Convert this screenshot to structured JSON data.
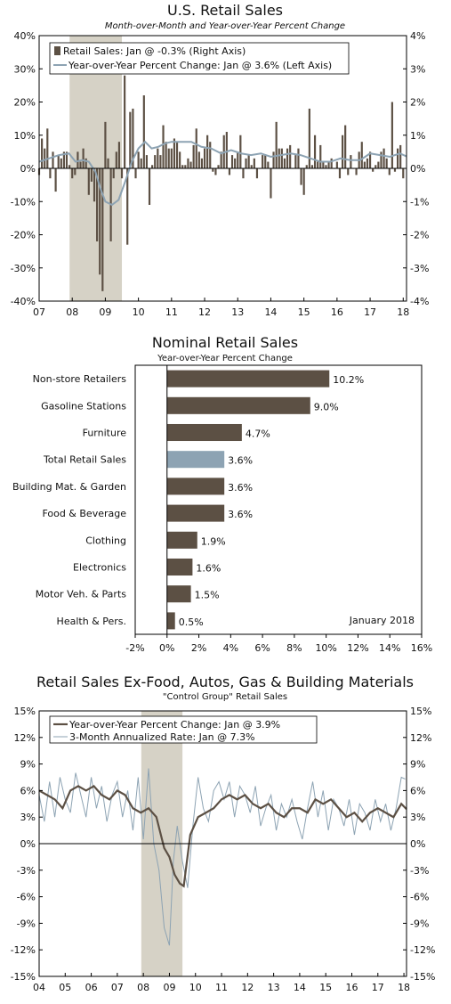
{
  "chart_data": [
    {
      "type": "bar",
      "title": "U.S. Retail Sales",
      "subtitle": "Month-over-Month and Year-over-Year Percent Change",
      "x_ticks": [
        "07",
        "08",
        "09",
        "10",
        "11",
        "12",
        "13",
        "14",
        "15",
        "16",
        "17",
        "18"
      ],
      "x_range": [
        2007.0,
        2018.1
      ],
      "left_axis": {
        "ticks": [
          "40%",
          "30%",
          "20%",
          "10%",
          "0%",
          "-10%",
          "-20%",
          "-30%",
          "-40%"
        ],
        "ylim": [
          -40,
          40
        ]
      },
      "right_axis": {
        "ticks": [
          "4%",
          "3%",
          "2%",
          "1%",
          "0%",
          "-1%",
          "-2%",
          "-3%",
          "-4%"
        ],
        "ylim": [
          -4,
          4
        ]
      },
      "recession_band": [
        2007.92,
        2009.5
      ],
      "legend": [
        {
          "label": "Retail Sales: Jan @ -0.3% (Right Axis)",
          "color": "#5c5044",
          "kind": "bar"
        },
        {
          "label": "Year-over-Year Percent Change: Jan @ 3.6% (Left Axis)",
          "color": "#8da3b3",
          "kind": "line"
        }
      ],
      "series": [
        {
          "name": "Retail Sales: Jan @ -0.3% (Right Axis)",
          "axis": "right",
          "color": "#5c5044",
          "start": 2007.0,
          "step": 0.0833333,
          "values": [
            -0.2,
            0.9,
            0.6,
            1.2,
            -0.3,
            0.5,
            -0.7,
            0.4,
            0.3,
            0.5,
            0.5,
            0.1,
            -0.3,
            -0.2,
            0.5,
            0.2,
            0.6,
            0.3,
            -0.8,
            -0.4,
            -1.0,
            -2.2,
            -3.2,
            -3.7,
            1.4,
            0.3,
            -2.2,
            -0.3,
            0.5,
            0.8,
            -0.3,
            2.8,
            -2.3,
            1.7,
            1.8,
            -0.3,
            0.5,
            0.3,
            2.2,
            0.4,
            -1.1,
            0.1,
            0.4,
            0.6,
            0.4,
            1.3,
            0.8,
            0.6,
            0.6,
            0.9,
            0.8,
            0.5,
            0.1,
            0.1,
            0.3,
            0.2,
            0.7,
            1.2,
            0.5,
            0.3,
            0.6,
            1.0,
            0.8,
            -0.1,
            -0.2,
            0.1,
            0.5,
            1.0,
            1.1,
            -0.2,
            0.4,
            0.3,
            0.5,
            1.0,
            -0.3,
            0.3,
            0.4,
            0.1,
            0.3,
            -0.3,
            0.0,
            0.4,
            0.4,
            0.2,
            -0.9,
            0.5,
            1.4,
            0.6,
            0.6,
            0.3,
            0.6,
            0.7,
            0.0,
            0.4,
            0.6,
            -0.5,
            -0.8,
            0.1,
            1.8,
            0.1,
            1.0,
            0.2,
            0.7,
            0.2,
            0.1,
            0.2,
            0.3,
            0.0,
            0.2,
            -0.3,
            1.0,
            1.3,
            -0.2,
            0.4,
            0.0,
            -0.2,
            0.5,
            0.8,
            0.2,
            0.3,
            0.5,
            -0.1,
            0.1,
            0.2,
            0.5,
            0.6,
            0.3,
            -0.2,
            2.0,
            -0.1,
            0.6,
            0.7,
            -0.3
          ]
        },
        {
          "name": "Year-over-Year Percent Change: Jan @ 3.6% (Left Axis)",
          "axis": "left",
          "color": "#8da3b3",
          "x": [
            2007.0,
            2007.3,
            2007.6,
            2007.9,
            2008.1,
            2008.3,
            2008.5,
            2008.7,
            2008.85,
            2009.0,
            2009.2,
            2009.4,
            2009.6,
            2009.8,
            2010.0,
            2010.2,
            2010.4,
            2010.6,
            2010.8,
            2011.0,
            2011.3,
            2011.6,
            2011.9,
            2012.2,
            2012.5,
            2012.8,
            2013.1,
            2013.4,
            2013.7,
            2014.0,
            2014.3,
            2014.6,
            2014.9,
            2015.2,
            2015.5,
            2015.8,
            2016.1,
            2016.4,
            2016.7,
            2017.0,
            2017.3,
            2017.6,
            2017.9,
            2018.1
          ],
          "values": [
            2.0,
            3.0,
            4.0,
            4.5,
            2.0,
            2.5,
            2.0,
            -1.0,
            -6.0,
            -10.0,
            -11.0,
            -9.5,
            -4.0,
            2.0,
            6.0,
            8.0,
            6.0,
            6.5,
            7.5,
            8.0,
            8.0,
            8.0,
            6.5,
            6.0,
            4.5,
            5.5,
            4.5,
            4.0,
            4.5,
            3.5,
            4.0,
            4.5,
            4.0,
            3.0,
            2.0,
            2.0,
            3.0,
            2.5,
            2.5,
            4.5,
            4.0,
            3.5,
            4.5,
            3.6
          ]
        }
      ]
    },
    {
      "type": "bar",
      "orientation": "horizontal",
      "title": "Nominal Retail Sales",
      "subtitle": "Year-over-Year Percent Change",
      "annotation": "January 2018",
      "categories": [
        "Non-store Retailers",
        "Gasoline Stations",
        "Furniture",
        "Total Retail Sales",
        "Building Mat. & Garden",
        "Food & Beverage",
        "Clothing",
        "Electronics",
        "Motor Veh. & Parts",
        "Health & Pers."
      ],
      "values": [
        10.2,
        9.0,
        4.7,
        3.6,
        3.6,
        3.6,
        1.9,
        1.6,
        1.5,
        0.5
      ],
      "value_labels": [
        "10.2%",
        "9.0%",
        "4.7%",
        "3.6%",
        "3.6%",
        "3.6%",
        "1.9%",
        "1.6%",
        "1.5%",
        "0.5%"
      ],
      "highlight_index": 3,
      "bar_color": "#5c5044",
      "highlight_color": "#8da3b3",
      "x_ticks": [
        "-2%",
        "0%",
        "2%",
        "4%",
        "6%",
        "8%",
        "10%",
        "12%",
        "14%",
        "16%"
      ],
      "xlim": [
        -2,
        16
      ]
    },
    {
      "type": "line",
      "title": "Retail Sales Ex-Food, Autos, Gas & Building Materials",
      "subtitle": "\"Control Group\" Retail Sales",
      "x_ticks": [
        "04",
        "05",
        "06",
        "07",
        "08",
        "09",
        "10",
        "11",
        "12",
        "13",
        "14",
        "15",
        "16",
        "17",
        "18"
      ],
      "x_range": [
        2004.0,
        2018.1
      ],
      "left_axis": {
        "ticks": [
          "15%",
          "12%",
          "9%",
          "6%",
          "3%",
          "0%",
          "-3%",
          "-6%",
          "-9%",
          "-12%",
          "-15%"
        ],
        "ylim": [
          -15,
          15
        ]
      },
      "right_axis": {
        "ticks": [
          "15%",
          "12%",
          "9%",
          "6%",
          "3%",
          "0%",
          "-3%",
          "-6%",
          "-9%",
          "-12%",
          "-15%"
        ],
        "ylim": [
          -15,
          15
        ]
      },
      "recession_band": [
        2007.92,
        2009.5
      ],
      "legend": [
        {
          "label": "Year-over-Year Percent Change: Jan @ 3.9%",
          "color": "#5c5044",
          "kind": "line"
        },
        {
          "label": "3-Month Annualized Rate: Jan @ 7.3%",
          "color": "#8da3b3",
          "kind": "line"
        }
      ],
      "series": [
        {
          "name": "Year-over-Year Percent Change: Jan @ 3.9%",
          "color": "#5c5044",
          "x": [
            2004.0,
            2004.3,
            2004.6,
            2004.9,
            2005.2,
            2005.5,
            2005.8,
            2006.1,
            2006.4,
            2006.7,
            2007.0,
            2007.3,
            2007.6,
            2007.9,
            2008.2,
            2008.5,
            2008.8,
            2009.0,
            2009.2,
            2009.4,
            2009.55,
            2009.8,
            2010.1,
            2010.4,
            2010.7,
            2011.0,
            2011.3,
            2011.6,
            2011.9,
            2012.2,
            2012.5,
            2012.8,
            2013.1,
            2013.4,
            2013.7,
            2014.0,
            2014.3,
            2014.6,
            2014.9,
            2015.2,
            2015.5,
            2015.8,
            2016.1,
            2016.4,
            2016.7,
            2017.0,
            2017.3,
            2017.6,
            2017.9,
            2018.1
          ],
          "values": [
            6.0,
            5.5,
            5.0,
            4.0,
            6.0,
            6.5,
            6.0,
            6.5,
            5.5,
            5.0,
            6.0,
            5.5,
            4.0,
            3.5,
            4.0,
            3.0,
            -0.5,
            -1.5,
            -3.5,
            -4.5,
            -4.8,
            1.0,
            3.0,
            3.5,
            4.0,
            5.0,
            5.5,
            5.0,
            5.5,
            4.5,
            4.0,
            4.5,
            3.5,
            3.0,
            4.0,
            4.0,
            3.5,
            5.0,
            4.5,
            5.0,
            4.0,
            3.0,
            3.5,
            2.5,
            3.5,
            4.0,
            3.5,
            3.0,
            4.5,
            3.9
          ]
        },
        {
          "name": "3-Month Annualized Rate: Jan @ 7.3%",
          "color": "#8da3b3",
          "x": [
            2004.0,
            2004.2,
            2004.4,
            2004.6,
            2004.8,
            2005.0,
            2005.2,
            2005.4,
            2005.6,
            2005.8,
            2006.0,
            2006.2,
            2006.4,
            2006.6,
            2006.8,
            2007.0,
            2007.2,
            2007.4,
            2007.6,
            2007.8,
            2008.0,
            2008.2,
            2008.4,
            2008.6,
            2008.8,
            2009.0,
            2009.15,
            2009.3,
            2009.5,
            2009.7,
            2009.9,
            2010.1,
            2010.3,
            2010.5,
            2010.7,
            2010.9,
            2011.1,
            2011.3,
            2011.5,
            2011.7,
            2011.9,
            2012.1,
            2012.3,
            2012.5,
            2012.7,
            2012.9,
            2013.1,
            2013.3,
            2013.5,
            2013.7,
            2013.9,
            2014.1,
            2014.3,
            2014.5,
            2014.7,
            2014.9,
            2015.1,
            2015.3,
            2015.5,
            2015.7,
            2015.9,
            2016.1,
            2016.3,
            2016.5,
            2016.7,
            2016.9,
            2017.1,
            2017.3,
            2017.5,
            2017.7,
            2017.9,
            2018.05
          ],
          "values": [
            5.5,
            2.5,
            7.0,
            3.0,
            7.5,
            5.0,
            3.5,
            8.0,
            5.5,
            3.0,
            7.5,
            4.0,
            6.5,
            2.5,
            5.5,
            7.0,
            3.0,
            6.0,
            1.5,
            7.5,
            0.5,
            8.5,
            0.0,
            -3.0,
            -9.5,
            -11.5,
            -2.0,
            2.0,
            -2.0,
            -5.0,
            2.0,
            7.5,
            4.0,
            2.5,
            6.0,
            7.0,
            5.0,
            7.0,
            3.0,
            6.5,
            5.5,
            3.5,
            6.5,
            2.0,
            4.0,
            5.5,
            1.5,
            4.5,
            3.0,
            5.0,
            2.5,
            0.5,
            4.0,
            7.0,
            3.0,
            6.0,
            1.5,
            5.0,
            4.0,
            2.0,
            5.0,
            1.0,
            4.5,
            3.5,
            1.5,
            5.0,
            2.5,
            4.5,
            1.5,
            4.0,
            7.5,
            7.3
          ]
        }
      ]
    }
  ]
}
